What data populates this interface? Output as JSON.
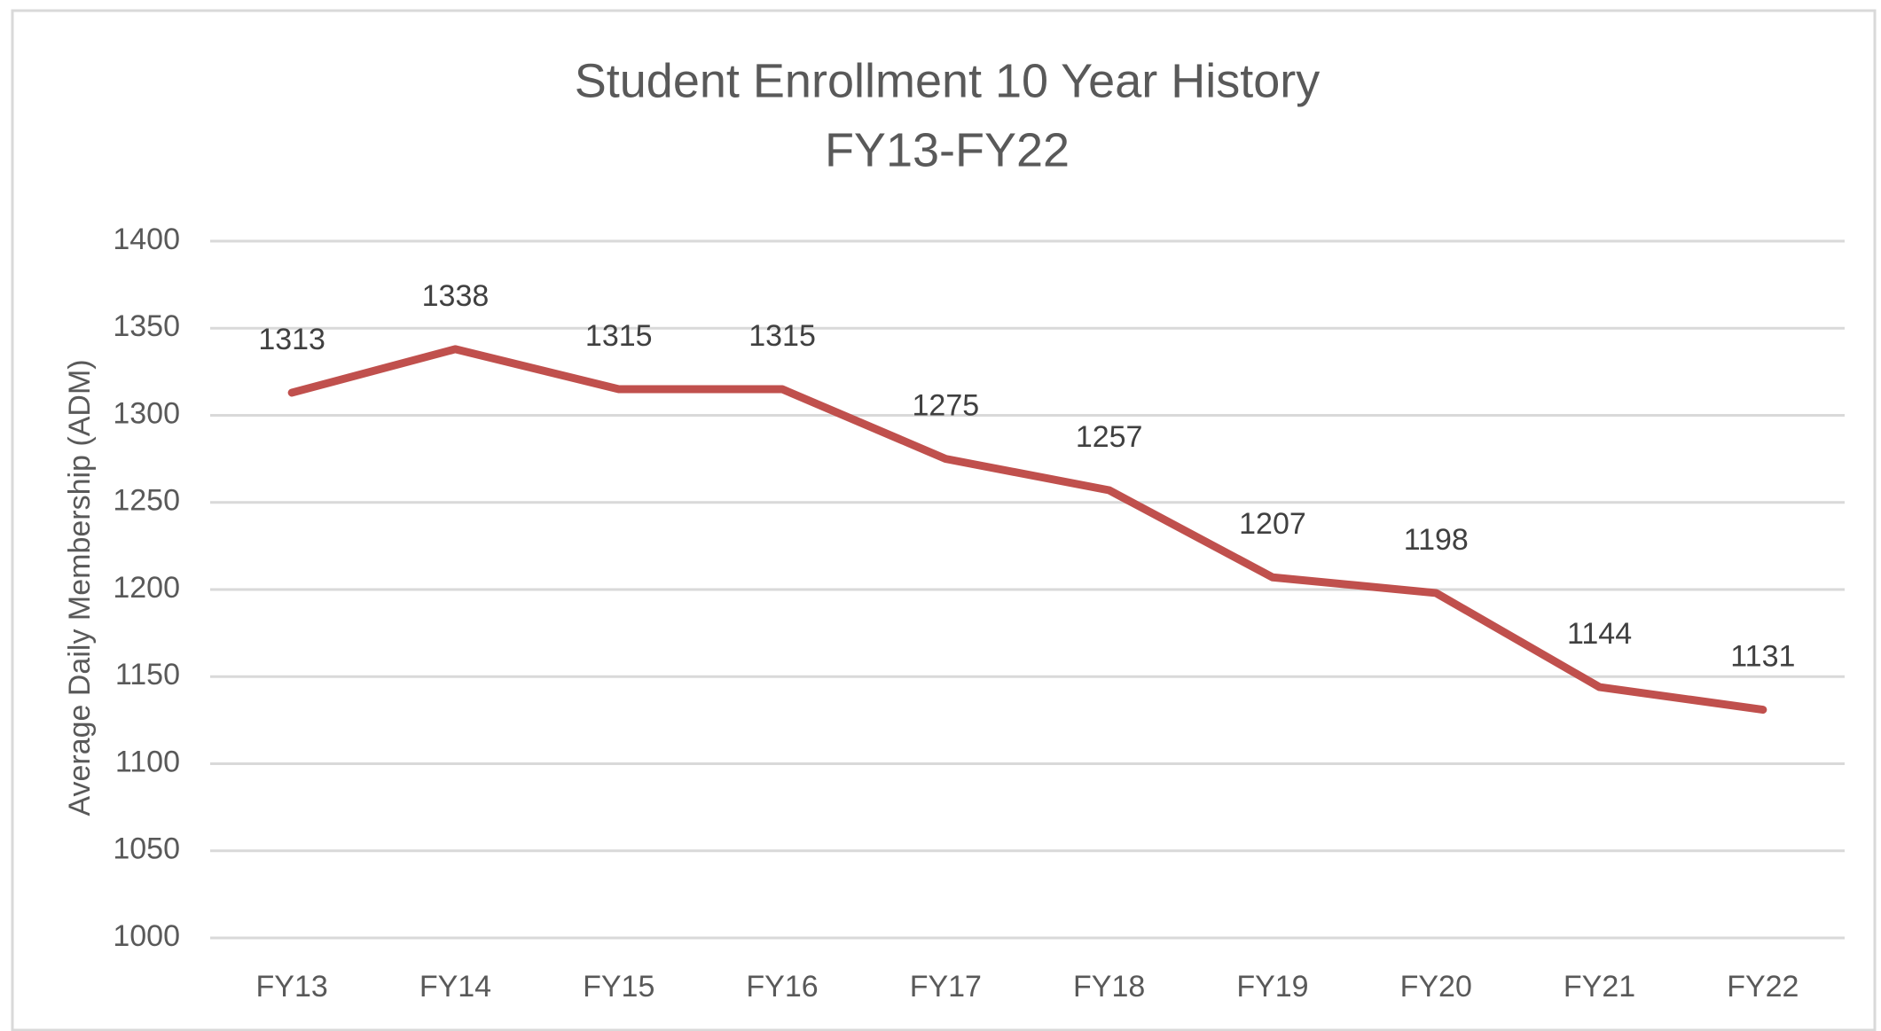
{
  "chart_data": {
    "type": "line",
    "title": "Student Enrollment 10 Year History",
    "subtitle": "FY13-FY22",
    "y_label": "Average Daily Membership (ADM)",
    "categories": [
      "FY13",
      "FY14",
      "FY15",
      "FY16",
      "FY17",
      "FY18",
      "FY19",
      "FY20",
      "FY21",
      "FY22"
    ],
    "series": [
      {
        "name": "ADM",
        "color": "#c0504d",
        "values": [
          1313,
          1338,
          1315,
          1315,
          1275,
          1257,
          1207,
          1198,
          1144,
          1131
        ]
      }
    ],
    "ylim": [
      1000,
      1400
    ],
    "yticks": [
      1000,
      1050,
      1100,
      1150,
      1200,
      1250,
      1300,
      1350,
      1400
    ],
    "grid": true,
    "data_labels": true
  }
}
